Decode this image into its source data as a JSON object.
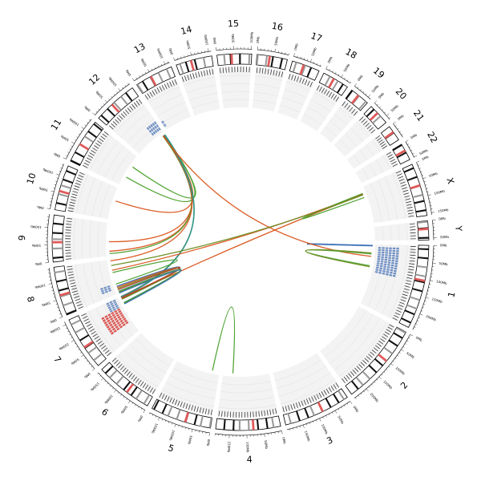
{
  "chromosomes": [
    {
      "name": "1",
      "length": 249,
      "ticks": [
        "0Mb",
        "50Mb",
        "100Mb",
        "150Mb",
        "200Mb"
      ]
    },
    {
      "name": "2",
      "length": 243,
      "ticks": [
        "0Mb",
        "50Mb",
        "100Mb",
        "150Mb",
        "200Mb"
      ]
    },
    {
      "name": "3",
      "length": 198,
      "ticks": [
        "0Mb",
        "50Mb",
        "100Mb",
        "150Mb"
      ]
    },
    {
      "name": "4",
      "length": 191,
      "ticks": [
        "0Mb",
        "50Mb",
        "100Mb",
        "150Mb"
      ]
    },
    {
      "name": "5",
      "length": 181,
      "ticks": [
        "0Mb",
        "50Mb",
        "100Mb",
        "150Mb"
      ]
    },
    {
      "name": "6",
      "length": 171,
      "ticks": [
        "0Mb",
        "50Mb",
        "100Mb",
        "150Mb"
      ]
    },
    {
      "name": "7",
      "length": 159,
      "ticks": [
        "0Mb",
        "50Mb",
        "100Mb",
        "150Mb"
      ]
    },
    {
      "name": "8",
      "length": 145,
      "ticks": [
        "0Mb",
        "50Mb",
        "100Mb"
      ]
    },
    {
      "name": "9",
      "length": 138,
      "ticks": [
        "0Mb",
        "50Mb",
        "100Mb"
      ]
    },
    {
      "name": "10",
      "length": 134,
      "ticks": [
        "0Mb",
        "50Mb",
        "100Mb"
      ]
    },
    {
      "name": "11",
      "length": 135,
      "ticks": [
        "0Mb",
        "50Mb",
        "100Mb"
      ]
    },
    {
      "name": "12",
      "length": 133,
      "ticks": [
        "0Mb",
        "50Mb",
        "100Mb"
      ]
    },
    {
      "name": "13",
      "length": 114,
      "ticks": [
        "0Mb",
        "50Mb",
        "100Mb"
      ]
    },
    {
      "name": "14",
      "length": 107,
      "ticks": [
        "0Mb",
        "50Mb",
        "100Mb"
      ]
    },
    {
      "name": "15",
      "length": 102,
      "ticks": [
        "0Mb",
        "50Mb",
        "100Mb"
      ]
    },
    {
      "name": "16",
      "length": 90,
      "ticks": [
        "0Mb",
        "50Mb"
      ]
    },
    {
      "name": "17",
      "length": 83,
      "ticks": [
        "0Mb",
        "50Mb"
      ]
    },
    {
      "name": "18",
      "length": 80,
      "ticks": [
        "0Mb",
        "50Mb"
      ]
    },
    {
      "name": "19",
      "length": 59,
      "ticks": [
        "0Mb",
        "50Mb"
      ]
    },
    {
      "name": "20",
      "length": 64,
      "ticks": [
        "0Mb",
        "50Mb"
      ]
    },
    {
      "name": "21",
      "length": 47,
      "ticks": [
        "0Mb"
      ]
    },
    {
      "name": "22",
      "length": 51,
      "ticks": [
        "0Mb",
        "50Mb"
      ]
    },
    {
      "name": "X",
      "length": 156,
      "ticks": [
        "0Mb",
        "50Mb",
        "100Mb",
        "150Mb"
      ]
    },
    {
      "name": "Y",
      "length": 57,
      "ticks": [
        "0Mb",
        "50Mb"
      ]
    }
  ],
  "colors": {
    "link_orange": "#d95319",
    "link_green": "#4aa02c",
    "link_blue": "#3a6fb5",
    "link_olive": "#6b8e23",
    "link_teal": "#2a9d8f",
    "link_red": "#c0392b",
    "track_bg": "#f3f3f3",
    "bar_blue": "#6f8fc4",
    "bar_red": "#d9534f",
    "centromere": "#e05a5a",
    "band_dark": "#111111",
    "band_grey": "#9a9a9a"
  },
  "regions": [
    {
      "chr": "1",
      "start": 10,
      "end": 115,
      "color": "bar_blue",
      "rows": 6
    },
    {
      "chr": "8",
      "start": 20,
      "end": 45,
      "color": "bar_blue",
      "rows": 3
    },
    {
      "chr": "7",
      "start": 50,
      "end": 120,
      "color": "bar_red",
      "rows": 6
    },
    {
      "chr": "7",
      "start": 120,
      "end": 159,
      "color": "bar_blue",
      "rows": 3
    },
    {
      "chr": "12",
      "start": 90,
      "end": 133,
      "color": "bar_blue",
      "rows": 3
    },
    {
      "chr": "13",
      "start": 0,
      "end": 10,
      "color": "bar_blue",
      "rows": 2
    }
  ],
  "links": [
    {
      "c1": "12",
      "p1": 126,
      "c2": "10",
      "p2": 80,
      "color": "link_orange"
    },
    {
      "c1": "12",
      "p1": 128,
      "c2": "9",
      "p2": 60,
      "color": "link_orange"
    },
    {
      "c1": "12",
      "p1": 124,
      "c2": "9",
      "p2": 20,
      "color": "link_orange"
    },
    {
      "c1": "12",
      "p1": 122,
      "c2": "9",
      "p2": 10,
      "color": "link_green"
    },
    {
      "c1": "12",
      "p1": 130,
      "c2": "11",
      "p2": 40,
      "color": "link_green"
    },
    {
      "c1": "12",
      "p1": 127,
      "c2": "11",
      "p2": 90,
      "color": "link_green"
    },
    {
      "c1": "12",
      "p1": 125,
      "c2": "8",
      "p2": 140,
      "color": "link_orange"
    },
    {
      "c1": "12",
      "p1": 129,
      "c2": "7",
      "p2": 158,
      "color": "link_blue"
    },
    {
      "c1": "12",
      "p1": 131,
      "c2": "7",
      "p2": 156,
      "color": "link_olive"
    },
    {
      "c1": "12",
      "p1": 132,
      "c2": "7",
      "p2": 154,
      "color": "link_teal"
    },
    {
      "c1": "12",
      "p1": 123,
      "c2": "1",
      "p2": 50,
      "color": "link_orange"
    },
    {
      "c1": "X",
      "p1": 30,
      "c2": "7",
      "p2": 150,
      "color": "link_orange"
    },
    {
      "c1": "X",
      "p1": 28,
      "c2": "8",
      "p2": 100,
      "color": "link_orange"
    },
    {
      "c1": "X",
      "p1": 26,
      "c2": "X",
      "p2": 44,
      "color": "link_green"
    },
    {
      "c1": "X",
      "p1": 32,
      "c2": "8",
      "p2": 120,
      "color": "link_olive"
    },
    {
      "c1": "8",
      "p1": 40,
      "c2": "8",
      "p2": 90,
      "color": "link_green"
    },
    {
      "c1": "8",
      "p1": 30,
      "c2": "7",
      "p2": 150,
      "color": "link_blue"
    },
    {
      "c1": "8",
      "p1": 25,
      "c2": "7",
      "p2": 148,
      "color": "link_orange"
    },
    {
      "c1": "8",
      "p1": 20,
      "c2": "7",
      "p2": 146,
      "color": "link_olive"
    },
    {
      "c1": "8",
      "p1": 15,
      "c2": "7",
      "p2": 152,
      "color": "link_red"
    },
    {
      "c1": "7",
      "p1": 130,
      "c2": "8",
      "p2": 8,
      "color": "link_teal"
    },
    {
      "c1": "7",
      "p1": 128,
      "c2": "8",
      "p2": 5,
      "color": "link_olive"
    },
    {
      "c1": "7",
      "p1": 126,
      "c2": "8",
      "p2": 2,
      "color": "link_green"
    },
    {
      "c1": "7",
      "p1": 124,
      "c2": "8",
      "p2": 0,
      "color": "link_blue"
    },
    {
      "c1": "4",
      "p1": 150,
      "c2": "5",
      "p2": 30,
      "color": "link_green"
    },
    {
      "c1": "1",
      "p1": 40,
      "c2": "1",
      "p2": 90,
      "color": "link_green"
    },
    {
      "c1": "1",
      "p1": 36,
      "c2": "1",
      "p2": 94,
      "color": "link_olive"
    }
  ],
  "tile_row": {
    "chr": "1",
    "pos": 5,
    "color": "link_blue"
  }
}
